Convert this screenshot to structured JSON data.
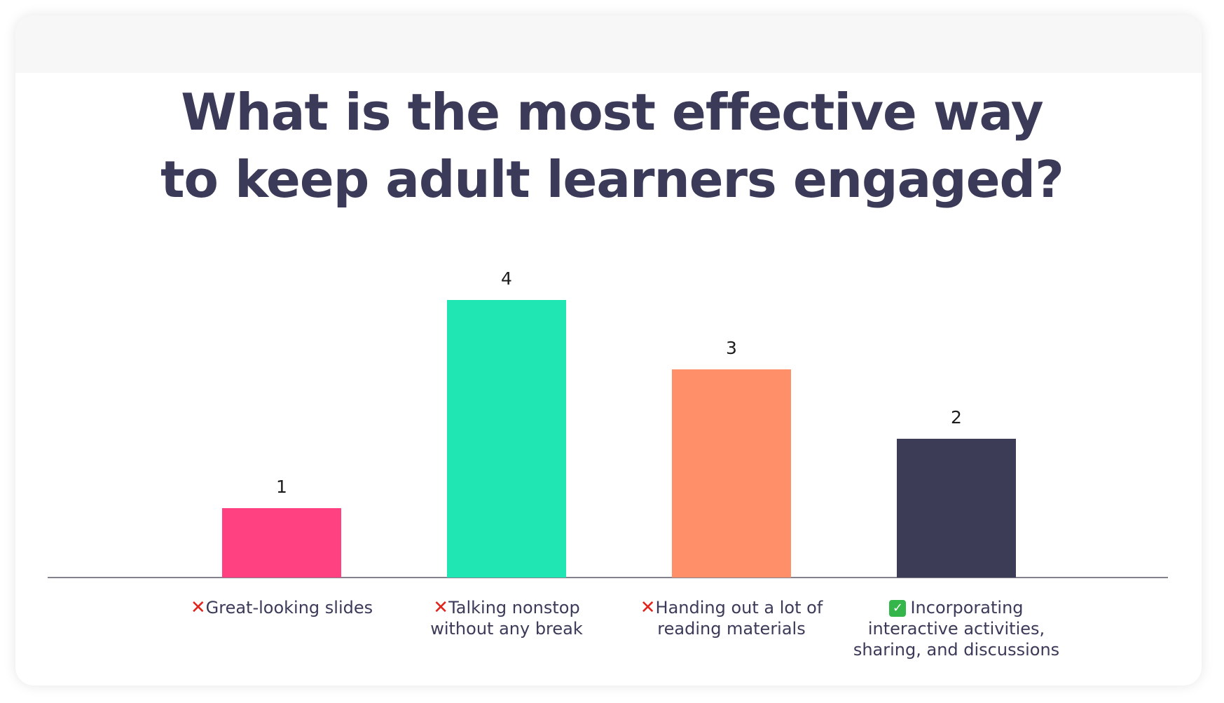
{
  "chart_data": {
    "type": "bar",
    "title_lines": [
      "What is the most effective way",
      "to keep adult learners engaged?"
    ],
    "categories": [
      "Great-looking slides",
      "Talking nonstop without any break",
      "Handing out a lot of reading materials",
      "Incorporating interactive activities, sharing, and discussions"
    ],
    "category_label_lines": [
      [
        "Great-looking slides"
      ],
      [
        "Talking nonstop",
        "without any break"
      ],
      [
        "Handing out a lot of",
        "reading materials"
      ],
      [
        "Incorporating",
        "interactive activities,",
        "sharing, and discussions"
      ]
    ],
    "category_marks": [
      "cross",
      "cross",
      "cross",
      "check"
    ],
    "values": [
      1,
      4,
      3,
      2
    ],
    "colors": [
      "#ff4081",
      "#20e6b4",
      "#ff8f68",
      "#3d3c56"
    ],
    "data_labels": true,
    "xlabel": "",
    "ylabel": "",
    "ylim": [
      0,
      4
    ],
    "grid": false,
    "legend": "none"
  },
  "icons": {
    "cross": "cross-mark-icon",
    "check": "check-mark-icon"
  },
  "glyphs": {
    "cross": "✕",
    "check": "✓"
  }
}
